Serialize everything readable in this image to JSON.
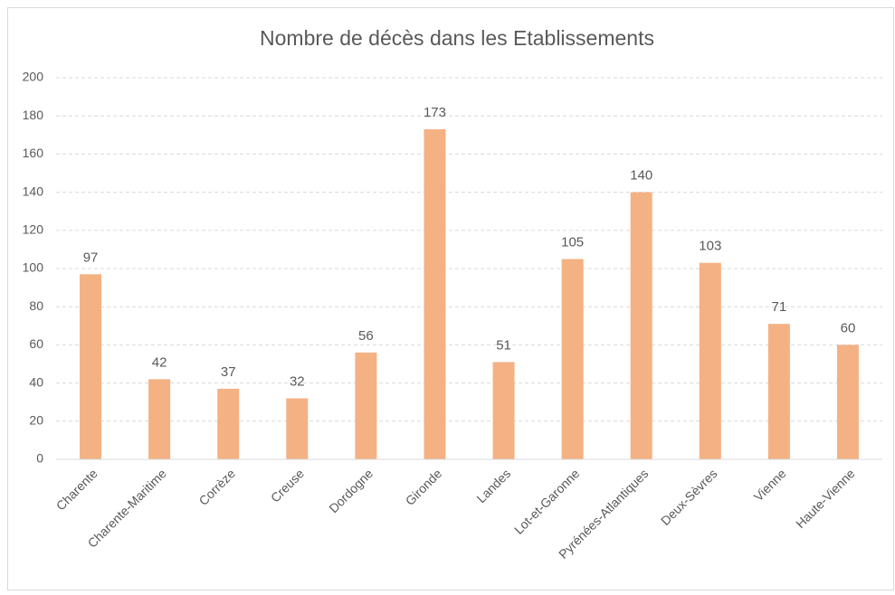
{
  "chart_data": {
    "type": "bar",
    "title": "Nombre de décès dans les Etablissements",
    "categories": [
      "Charente",
      "Charente-Maritime",
      "Corrèze",
      "Creuse",
      "Dordogne",
      "Gironde",
      "Landes",
      "Lot-et-Garonne",
      "Pyrénées-Atlantiques",
      "Deux-Sèvres",
      "Vienne",
      "Haute-Vienne"
    ],
    "values": [
      97,
      42,
      37,
      32,
      56,
      173,
      51,
      105,
      140,
      103,
      71,
      60
    ],
    "color": "#f4b183",
    "ylim": [
      0,
      200
    ],
    "yticks": [
      0,
      20,
      40,
      60,
      80,
      100,
      120,
      140,
      160,
      180,
      200
    ],
    "grid": true
  }
}
